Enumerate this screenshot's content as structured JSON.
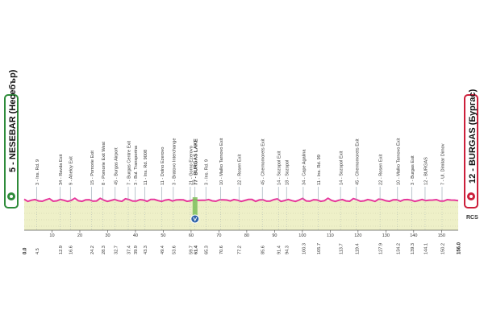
{
  "start": {
    "label": "5 - NESEBAR (Несебър)",
    "color": "#2e8b3a"
  },
  "finish": {
    "label": "12 - BURGAS (Бургас)",
    "color": "#cc1f3b"
  },
  "colors": {
    "profile_line": "#e6389b",
    "terrain": "#eef0c8",
    "rule": "#8fa0ad"
  },
  "points": [
    {
      "label": "3 - Ins. Rd. 9",
      "km": "4.5"
    },
    {
      "label": "34 - Ravda Exit",
      "km": "12.9"
    },
    {
      "label": "9 - Aheloy Exit",
      "km": "16.6"
    },
    {
      "label": "15 - Pomorie Exit",
      "km": "24.2"
    },
    {
      "label": "8 - Pomorie Exit West",
      "km": "28.3"
    },
    {
      "label": "45 - Burgas Airport",
      "km": "32.7"
    },
    {
      "label": "7 - Burgas Centre Exit",
      "km": "37.4"
    },
    {
      "label": "3 - Bul. Transportna",
      "km": "39.9"
    },
    {
      "label": "11 - Ins. Rd. 9008",
      "km": "43.3"
    },
    {
      "label": "11 - Dolno Ezerovo",
      "km": "49.4"
    },
    {
      "label": "3 - Bratovo Interchange",
      "km": "53.6"
    },
    {
      "label": "21 - Gorno Ezerovo",
      "km": "59.7"
    },
    {
      "label": "77 - BURGAS LAKE",
      "km": "61.4",
      "highlight": true
    },
    {
      "label": "3 - Ins. Rd. 9",
      "km": "65.3"
    },
    {
      "label": "10 - Malko Tarnovo Exit",
      "km": "70.6"
    },
    {
      "label": "22 - Rosen Exit",
      "km": "77.2"
    },
    {
      "label": "45 - Chernomorets Exit",
      "km": "85.6"
    },
    {
      "label": "14 - Sozopol Exit",
      "km": "91.4"
    },
    {
      "label": "18 - Sozopol",
      "km": "94.3"
    },
    {
      "label": "34 - Cape Agalina",
      "km": "100.3"
    },
    {
      "label": "11 - Ins. Rd. 99",
      "km": "105.7"
    },
    {
      "label": "14 - Sozopol Exit",
      "km": "113.7"
    },
    {
      "label": "45 - Chernomorets Exit",
      "km": "119.4"
    },
    {
      "label": "22 - Rosen Exit",
      "km": "127.9"
    },
    {
      "label": "10 - Malko Tarnovo Exit",
      "km": "134.2"
    },
    {
      "label": "3 - Burgas Exit",
      "km": "139.3"
    },
    {
      "label": "12 - BURGAS",
      "km": "144.1"
    },
    {
      "label": "7 - Ul. Dimitar Dimov",
      "km": "150.2"
    }
  ],
  "start_km": "0.0",
  "finish_km": "156.0",
  "axis_ticks": [
    "10",
    "20",
    "30",
    "40",
    "50",
    "60",
    "70",
    "80",
    "90",
    "100",
    "110",
    "120",
    "130",
    "140",
    "150"
  ],
  "sprint_icon": "checkpoint-marker-icon",
  "sprint_marker_km": 61.4,
  "logo_text": "RCS",
  "flag_icons": [
    "start-flag-icon",
    "finish-flag-icon"
  ]
}
